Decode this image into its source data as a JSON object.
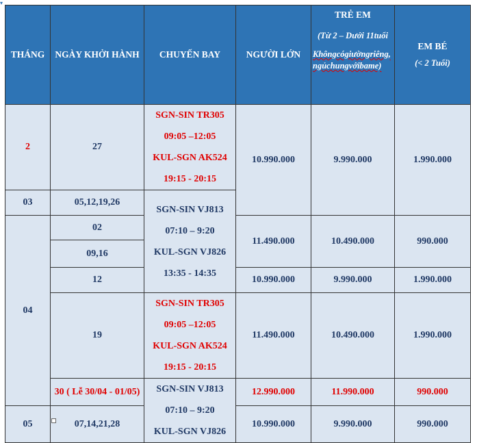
{
  "headers": {
    "month": "THÁNG",
    "date": "NGÀY KHỞI HÀNH",
    "flight": "CHUYẾN BAY",
    "adult": "NGƯỜI LỚN",
    "child_title": "TRẺ EM",
    "child_range": "(Từ 2 – Dưới 11tuổi",
    "child_note": "Khôngcógiườngriêng, ngủchungvớibame)",
    "infant_title": "EM BÉ",
    "infant_range": "(< 2 Tuổi)"
  },
  "flights": {
    "group_a": [
      "SGN-SIN TR305",
      "09:05 –12:05",
      "KUL-SGN AK524",
      "19:15 - 20:15"
    ],
    "group_b": [
      "SGN-SIN VJ813",
      "07:10 – 9:20",
      "KUL-SGN VJ826",
      "13:35 - 14:35"
    ],
    "group_c": [
      "SGN-SIN TR305",
      "09:05 –12:05",
      "KUL-SGN AK524",
      "19:15 - 20:15"
    ],
    "group_d": [
      "SGN-SIN VJ813",
      "07:10 – 9:20",
      "KUL-SGN VJ826"
    ]
  },
  "months": {
    "m2": "2",
    "m3": "03",
    "m4": "04",
    "m5": "05"
  },
  "rows": {
    "r1": {
      "date": "27",
      "adult": "10.990.000",
      "child": "9.990.000",
      "infant": "1.990.000"
    },
    "r2": {
      "date": "05,12,19,26"
    },
    "r3": {
      "date": "02"
    },
    "r4": {
      "date": "09,16",
      "adult": "11.490.000",
      "child": "10.490.000",
      "infant": "990.000"
    },
    "r5": {
      "date": "12",
      "adult": "10.990.000",
      "child": "9.990.000",
      "infant": "1.990.000"
    },
    "r6": {
      "date": "19",
      "adult": "11.490.000",
      "child": "10.490.000",
      "infant": "1.990.000"
    },
    "r7": {
      "date": "30 ( Lễ 30/04 - 01/05)",
      "adult": "12.990.000",
      "child": "11.990.000",
      "infant": "990.000"
    },
    "r8": {
      "date": "07,14,21,28",
      "adult": "10.990.000",
      "child": "9.990.000",
      "infant": "990.000"
    }
  }
}
